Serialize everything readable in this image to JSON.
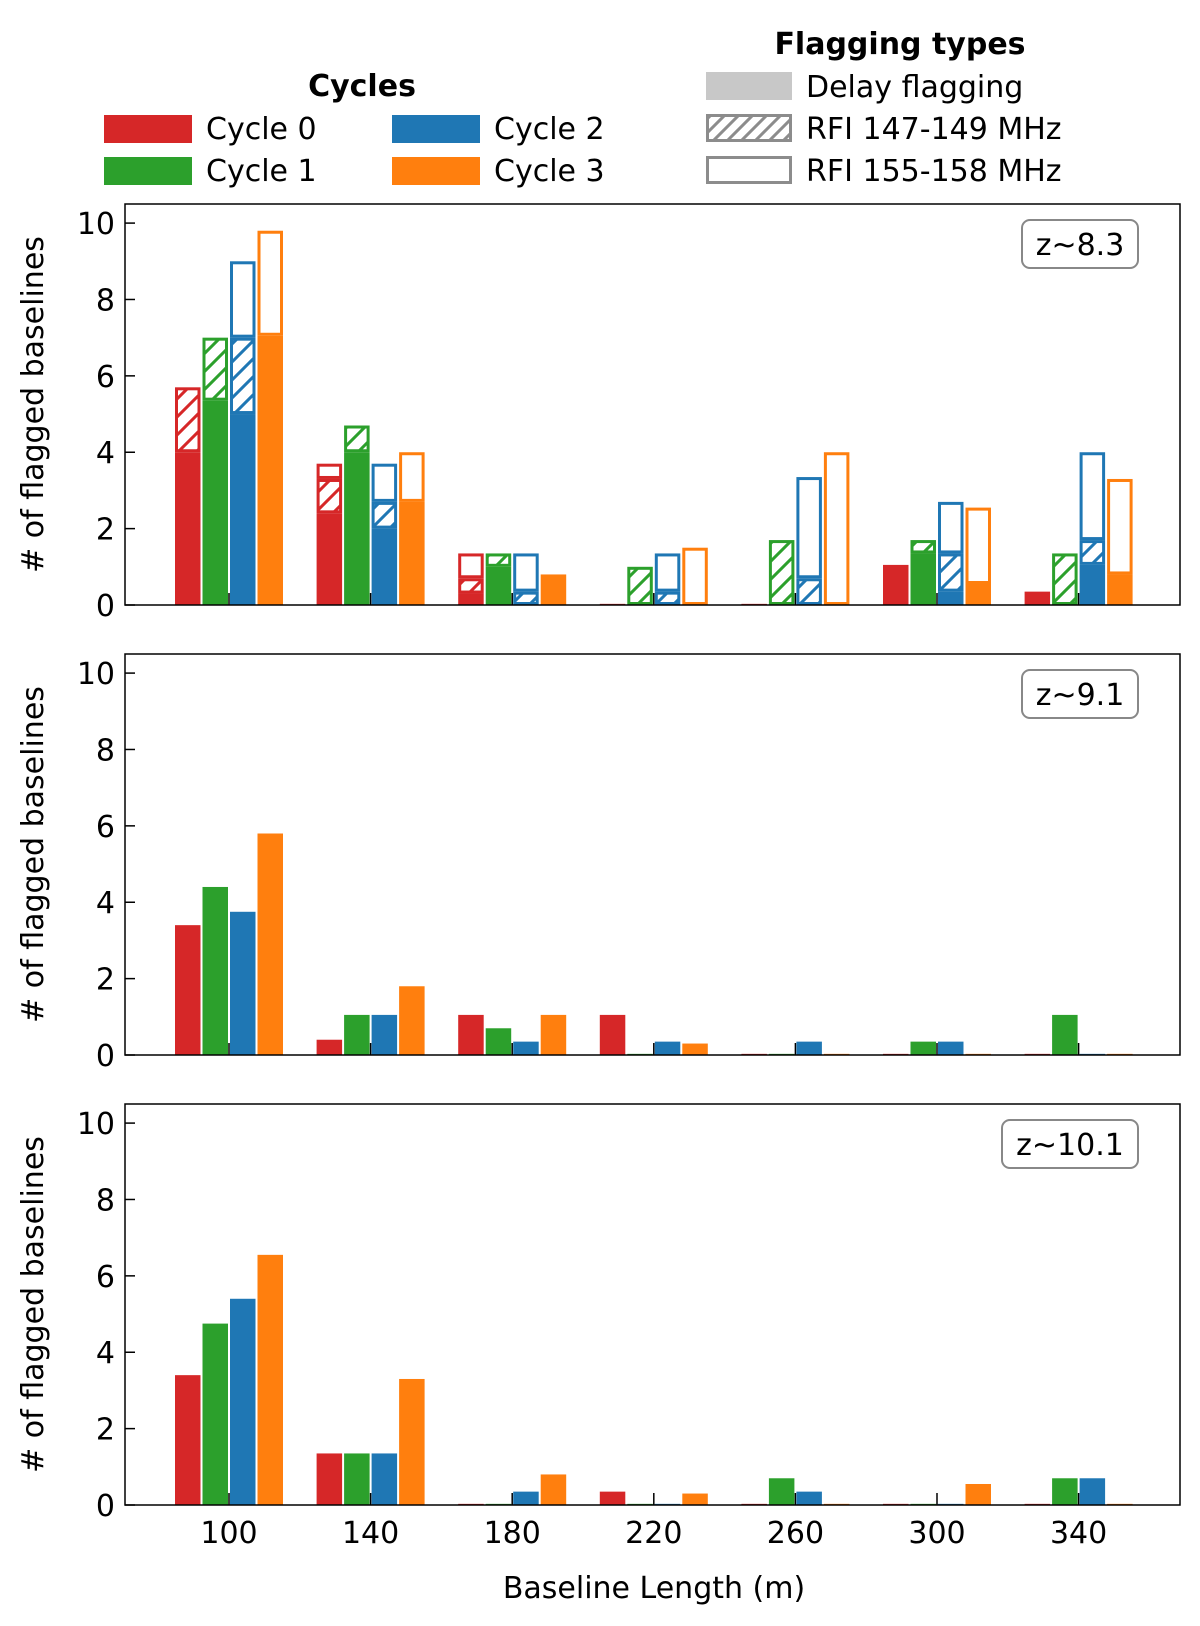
{
  "chart_data": {
    "type": "bar",
    "categories": [
      "100",
      "140",
      "180",
      "220",
      "260",
      "300",
      "340"
    ],
    "xlabel": "Baseline Length (m)",
    "ylabel": "# of flagged baselines",
    "ylim": [
      0,
      10.5
    ],
    "yticks": [
      "0",
      "2",
      "4",
      "6",
      "8",
      "10"
    ],
    "legend_cycles": {
      "title": "Cycles",
      "items": [
        {
          "name": "Cycle 0",
          "color": "#d62728"
        },
        {
          "name": "Cycle 1",
          "color": "#2ca02c"
        },
        {
          "name": "Cycle 2",
          "color": "#1f77b4"
        },
        {
          "name": "Cycle 3",
          "color": "#ff7f0e"
        }
      ]
    },
    "legend_flagging": {
      "title": "Flagging types",
      "items": [
        {
          "name": "Delay flagging",
          "style": "solid"
        },
        {
          "name": "RFI 147-149 MHz",
          "style": "hatched"
        },
        {
          "name": "RFI 155-158 MHz",
          "style": "outline"
        }
      ]
    },
    "panels": [
      {
        "label": "z~8.3",
        "series": [
          {
            "name": "Cycle 0",
            "delay": [
              4.0,
              2.4,
              0.3,
              0.0,
              0.0,
              1.05,
              0.35
            ],
            "rfi_147_149": [
              1.7,
              0.9,
              0.4,
              0.0,
              0.0,
              0.0,
              0.0
            ],
            "rfi_155_158": [
              0.0,
              0.4,
              0.65,
              0.0,
              0.0,
              0.0,
              0.0
            ]
          },
          {
            "name": "Cycle 1",
            "delay": [
              5.35,
              4.0,
              1.0,
              0.0,
              0.0,
              1.35,
              0.0
            ],
            "rfi_147_149": [
              1.65,
              0.7,
              0.35,
              1.0,
              1.7,
              0.35,
              1.35
            ],
            "rfi_155_158": [
              0.0,
              0.0,
              0.0,
              0.0,
              0.0,
              0.0,
              0.0
            ]
          },
          {
            "name": "Cycle 2",
            "delay": [
              5.0,
              2.0,
              0.0,
              0.0,
              0.0,
              0.35,
              1.05
            ],
            "rfi_147_149": [
              2.0,
              0.7,
              0.35,
              0.35,
              0.7,
              1.0,
              0.65
            ],
            "rfi_155_158": [
              2.0,
              1.0,
              1.0,
              1.0,
              2.65,
              1.35,
              2.3
            ]
          },
          {
            "name": "Cycle 3",
            "delay": [
              7.05,
              2.7,
              0.8,
              0.0,
              0.0,
              0.55,
              0.8
            ],
            "rfi_147_149": [
              0.0,
              0.0,
              0.0,
              0.0,
              0.0,
              0.0,
              0.0
            ],
            "rfi_155_158": [
              2.75,
              1.3,
              0.0,
              1.5,
              4.0,
              2.0,
              2.5
            ]
          }
        ]
      },
      {
        "label": "z~9.1",
        "series": [
          {
            "name": "Cycle 0",
            "delay": [
              3.4,
              0.4,
              1.05,
              1.05,
              0.0,
              0.0,
              0.0
            ]
          },
          {
            "name": "Cycle 1",
            "delay": [
              4.4,
              1.05,
              0.7,
              0.0,
              0.0,
              0.35,
              1.05
            ]
          },
          {
            "name": "Cycle 2",
            "delay": [
              3.75,
              1.05,
              0.35,
              0.35,
              0.35,
              0.35,
              0.0
            ]
          },
          {
            "name": "Cycle 3",
            "delay": [
              5.8,
              1.8,
              1.05,
              0.3,
              0.0,
              0.0,
              0.0
            ]
          }
        ]
      },
      {
        "label": "z~10.1",
        "series": [
          {
            "name": "Cycle 0",
            "delay": [
              3.4,
              1.35,
              0.0,
              0.35,
              0.0,
              0.0,
              0.0
            ]
          },
          {
            "name": "Cycle 1",
            "delay": [
              4.75,
              1.35,
              0.0,
              0.0,
              0.7,
              0.0,
              0.7
            ]
          },
          {
            "name": "Cycle 2",
            "delay": [
              5.4,
              1.35,
              0.35,
              0.0,
              0.35,
              0.0,
              0.7
            ]
          },
          {
            "name": "Cycle 3",
            "delay": [
              6.55,
              3.3,
              0.8,
              0.3,
              0.0,
              0.55,
              0.0
            ]
          }
        ]
      }
    ]
  }
}
